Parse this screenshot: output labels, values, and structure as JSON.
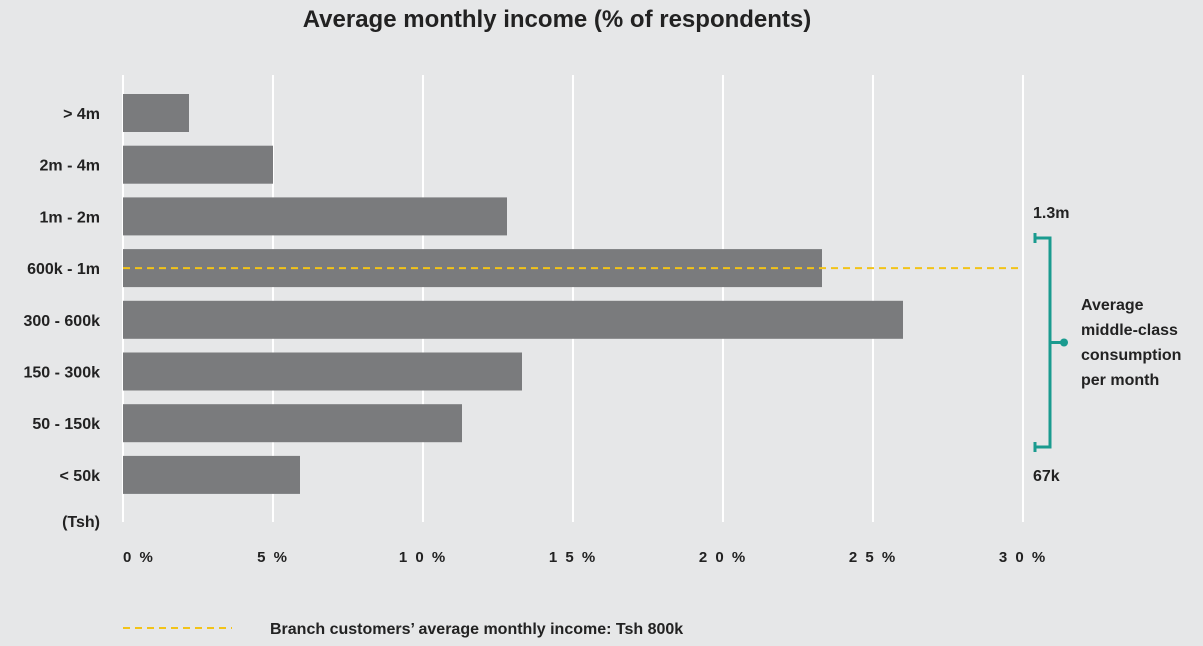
{
  "chart_data": {
    "type": "bar",
    "orientation": "horizontal",
    "title": "Average monthly income (% of respondents)",
    "categories": [
      "> 4m",
      "2m - 4m",
      "1m - 2m",
      "600k - 1m",
      "300 - 600k",
      "150 - 300k",
      "50 - 150k",
      "< 50k"
    ],
    "values": [
      2.2,
      5.0,
      12.8,
      23.3,
      26.0,
      13.3,
      11.3,
      5.9
    ],
    "category_unit_label": "(Tsh)",
    "xlim": [
      0,
      30
    ],
    "x_ticks": [
      0,
      5,
      10,
      15,
      20,
      25,
      30
    ],
    "x_tick_labels": [
      "0 %",
      "5 %",
      "1 0 %",
      "1 5 %",
      "2 0 %",
      "2 5 %",
      "3 0 %"
    ],
    "grid": "vertical",
    "bar_color": "#7a7b7d",
    "reference_line": {
      "label": "Branch customers’ average monthly income: Tsh 800k",
      "category": "600k - 1m",
      "color": "#f2c318",
      "style": "dashed"
    },
    "range_annotation": {
      "top_label": "1.3m",
      "bottom_label": "67k",
      "description": [
        "Average",
        "middle-class",
        "consumption",
        "per month"
      ],
      "color": "#1a9b8f"
    },
    "legend_position": "bottom-left"
  }
}
